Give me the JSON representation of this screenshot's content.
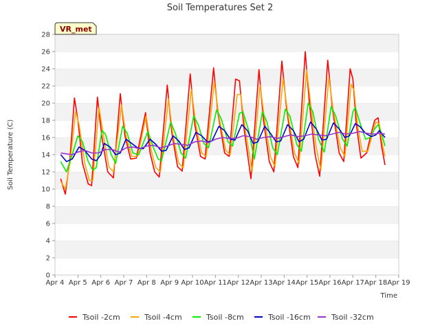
{
  "chart_data": {
    "type": "line",
    "title": "Soil Temperatures Set 2",
    "xlabel": "Time",
    "ylabel": "Soil Temperature (C)",
    "badge": "VR_met",
    "ylim": [
      0,
      28
    ],
    "yticks": [
      0,
      2,
      4,
      6,
      8,
      10,
      12,
      14,
      16,
      18,
      20,
      22,
      24,
      26,
      28
    ],
    "xlim": [
      4,
      19
    ],
    "xticks": [
      {
        "v": 4,
        "label": "Apr 4"
      },
      {
        "v": 5,
        "label": "Apr 5"
      },
      {
        "v": 6,
        "label": "Apr 6"
      },
      {
        "v": 7,
        "label": "Apr 7"
      },
      {
        "v": 8,
        "label": "Apr 8"
      },
      {
        "v": 9,
        "label": "Apr 9"
      },
      {
        "v": 10,
        "label": "Apr 10"
      },
      {
        "v": 11,
        "label": "Apr 11"
      },
      {
        "v": 12,
        "label": "Apr 12"
      },
      {
        "v": 13,
        "label": "Apr 13"
      },
      {
        "v": 14,
        "label": "Apr 14"
      },
      {
        "v": 15,
        "label": "Apr 15"
      },
      {
        "v": 16,
        "label": "Apr 16"
      },
      {
        "v": 17,
        "label": "Apr 17"
      },
      {
        "v": 18,
        "label": "Apr 18"
      },
      {
        "v": 19,
        "label": "Apr 19"
      }
    ],
    "grid": "horizontal bands",
    "legend_position": "bottom",
    "series": [
      {
        "name": "Tsoil -2cm",
        "color": "#ff0000",
        "points": [
          [
            4.25,
            11.2
          ],
          [
            4.45,
            9.4
          ],
          [
            4.65,
            13.5
          ],
          [
            4.85,
            20.6
          ],
          [
            5.0,
            18.0
          ],
          [
            5.2,
            13.0
          ],
          [
            5.45,
            10.6
          ],
          [
            5.6,
            10.4
          ],
          [
            5.85,
            20.7
          ],
          [
            6.05,
            16.0
          ],
          [
            6.3,
            12.0
          ],
          [
            6.55,
            11.3
          ],
          [
            6.85,
            21.1
          ],
          [
            7.05,
            16.2
          ],
          [
            7.3,
            13.5
          ],
          [
            7.55,
            13.6
          ],
          [
            7.95,
            18.9
          ],
          [
            8.15,
            14.2
          ],
          [
            8.35,
            12.0
          ],
          [
            8.55,
            11.4
          ],
          [
            8.9,
            22.1
          ],
          [
            9.1,
            16.5
          ],
          [
            9.35,
            12.6
          ],
          [
            9.55,
            12.1
          ],
          [
            9.9,
            23.4
          ],
          [
            10.1,
            17.5
          ],
          [
            10.35,
            13.8
          ],
          [
            10.55,
            13.5
          ],
          [
            10.92,
            24.1
          ],
          [
            11.1,
            19.0
          ],
          [
            11.4,
            14.2
          ],
          [
            11.6,
            13.8
          ],
          [
            11.88,
            22.8
          ],
          [
            12.05,
            22.6
          ],
          [
            12.25,
            17.0
          ],
          [
            12.55,
            11.2
          ],
          [
            12.9,
            23.9
          ],
          [
            13.1,
            18.0
          ],
          [
            13.35,
            13.2
          ],
          [
            13.55,
            12.0
          ],
          [
            13.9,
            24.9
          ],
          [
            14.1,
            19.5
          ],
          [
            14.4,
            13.8
          ],
          [
            14.6,
            12.5
          ],
          [
            14.92,
            26.0
          ],
          [
            15.1,
            20.0
          ],
          [
            15.35,
            14.0
          ],
          [
            15.55,
            11.5
          ],
          [
            15.9,
            25.0
          ],
          [
            16.1,
            19.5
          ],
          [
            16.4,
            14.2
          ],
          [
            16.6,
            13.2
          ],
          [
            16.88,
            24.0
          ],
          [
            17.0,
            22.8
          ],
          [
            17.15,
            17.5
          ],
          [
            17.35,
            13.6
          ],
          [
            17.6,
            14.2
          ],
          [
            17.8,
            16.5
          ],
          [
            17.95,
            18.0
          ],
          [
            18.1,
            18.3
          ],
          [
            18.25,
            15.0
          ],
          [
            18.4,
            12.8
          ]
        ]
      },
      {
        "name": "Tsoil -4cm",
        "color": "#ffa500",
        "points": [
          [
            4.25,
            10.9
          ],
          [
            4.45,
            10.0
          ],
          [
            4.65,
            13.0
          ],
          [
            4.9,
            19.0
          ],
          [
            5.05,
            17.5
          ],
          [
            5.3,
            13.0
          ],
          [
            5.5,
            11.0
          ],
          [
            5.65,
            11.0
          ],
          [
            5.92,
            19.5
          ],
          [
            6.1,
            16.5
          ],
          [
            6.35,
            12.6
          ],
          [
            6.55,
            12.0
          ],
          [
            6.9,
            19.8
          ],
          [
            7.1,
            16.2
          ],
          [
            7.35,
            13.8
          ],
          [
            7.6,
            13.8
          ],
          [
            7.98,
            18.5
          ],
          [
            8.2,
            14.5
          ],
          [
            8.4,
            12.5
          ],
          [
            8.6,
            12.0
          ],
          [
            8.95,
            20.5
          ],
          [
            9.15,
            16.2
          ],
          [
            9.4,
            13.0
          ],
          [
            9.6,
            12.5
          ],
          [
            9.95,
            21.6
          ],
          [
            10.15,
            17.5
          ],
          [
            10.4,
            14.2
          ],
          [
            10.6,
            13.8
          ],
          [
            10.95,
            22.5
          ],
          [
            11.15,
            18.5
          ],
          [
            11.45,
            14.5
          ],
          [
            11.65,
            14.0
          ],
          [
            11.95,
            21.0
          ],
          [
            12.1,
            21.0
          ],
          [
            12.3,
            17.0
          ],
          [
            12.6,
            12.0
          ],
          [
            12.95,
            22.1
          ],
          [
            13.15,
            18.0
          ],
          [
            13.4,
            13.8
          ],
          [
            13.6,
            12.6
          ],
          [
            13.95,
            22.9
          ],
          [
            14.15,
            19.0
          ],
          [
            14.45,
            14.2
          ],
          [
            14.65,
            13.0
          ],
          [
            14.98,
            23.9
          ],
          [
            15.15,
            20.0
          ],
          [
            15.4,
            14.8
          ],
          [
            15.6,
            12.2
          ],
          [
            15.95,
            23.0
          ],
          [
            16.15,
            19.0
          ],
          [
            16.45,
            14.8
          ],
          [
            16.65,
            13.8
          ],
          [
            16.92,
            22.2
          ],
          [
            17.05,
            21.5
          ],
          [
            17.2,
            17.5
          ],
          [
            17.4,
            14.4
          ],
          [
            17.65,
            14.4
          ],
          [
            17.85,
            16.4
          ],
          [
            18.0,
            17.8
          ],
          [
            18.15,
            17.6
          ],
          [
            18.3,
            15.0
          ],
          [
            18.4,
            13.8
          ]
        ]
      },
      {
        "name": "Tsoil -8cm",
        "color": "#00ee00",
        "points": [
          [
            4.25,
            13.2
          ],
          [
            4.5,
            12.0
          ],
          [
            4.75,
            14.0
          ],
          [
            5.0,
            16.2
          ],
          [
            5.2,
            15.5
          ],
          [
            5.45,
            13.2
          ],
          [
            5.65,
            12.2
          ],
          [
            5.8,
            12.5
          ],
          [
            6.05,
            16.8
          ],
          [
            6.2,
            16.4
          ],
          [
            6.45,
            14.0
          ],
          [
            6.65,
            13.0
          ],
          [
            6.95,
            17.3
          ],
          [
            7.15,
            16.5
          ],
          [
            7.4,
            14.2
          ],
          [
            7.65,
            14.0
          ],
          [
            8.05,
            16.7
          ],
          [
            8.3,
            14.8
          ],
          [
            8.5,
            13.5
          ],
          [
            8.65,
            13.3
          ],
          [
            9.05,
            17.8
          ],
          [
            9.25,
            16.5
          ],
          [
            9.5,
            14.2
          ],
          [
            9.7,
            13.6
          ],
          [
            10.05,
            18.5
          ],
          [
            10.25,
            17.5
          ],
          [
            10.5,
            15.3
          ],
          [
            10.7,
            14.8
          ],
          [
            11.05,
            19.2
          ],
          [
            11.25,
            18.2
          ],
          [
            11.55,
            15.5
          ],
          [
            11.75,
            15.0
          ],
          [
            12.05,
            18.8
          ],
          [
            12.2,
            19.0
          ],
          [
            12.45,
            16.8
          ],
          [
            12.7,
            13.5
          ],
          [
            13.05,
            19.0
          ],
          [
            13.25,
            17.8
          ],
          [
            13.5,
            14.8
          ],
          [
            13.7,
            14.0
          ],
          [
            14.05,
            19.3
          ],
          [
            14.25,
            18.5
          ],
          [
            14.55,
            15.2
          ],
          [
            14.75,
            14.4
          ],
          [
            15.05,
            20.0
          ],
          [
            15.25,
            19.0
          ],
          [
            15.5,
            15.8
          ],
          [
            15.75,
            14.3
          ],
          [
            16.05,
            19.6
          ],
          [
            16.25,
            18.5
          ],
          [
            16.55,
            15.8
          ],
          [
            16.75,
            15.0
          ],
          [
            17.0,
            19.0
          ],
          [
            17.1,
            19.5
          ],
          [
            17.3,
            17.8
          ],
          [
            17.55,
            15.8
          ],
          [
            17.75,
            16.0
          ],
          [
            17.95,
            17.0
          ],
          [
            18.1,
            17.5
          ],
          [
            18.25,
            16.5
          ],
          [
            18.4,
            15.0
          ]
        ]
      },
      {
        "name": "Tsoil -16cm",
        "color": "#0000cc",
        "points": [
          [
            4.25,
            14.0
          ],
          [
            4.5,
            13.2
          ],
          [
            4.75,
            13.5
          ],
          [
            5.05,
            14.9
          ],
          [
            5.3,
            14.5
          ],
          [
            5.6,
            13.5
          ],
          [
            5.8,
            13.3
          ],
          [
            6.0,
            14.0
          ],
          [
            6.15,
            15.3
          ],
          [
            6.4,
            14.9
          ],
          [
            6.65,
            14.0
          ],
          [
            6.85,
            14.2
          ],
          [
            7.1,
            15.8
          ],
          [
            7.35,
            15.3
          ],
          [
            7.6,
            14.8
          ],
          [
            7.85,
            14.7
          ],
          [
            8.15,
            15.8
          ],
          [
            8.4,
            15.2
          ],
          [
            8.65,
            14.4
          ],
          [
            8.85,
            14.5
          ],
          [
            9.15,
            16.2
          ],
          [
            9.4,
            15.6
          ],
          [
            9.65,
            14.6
          ],
          [
            9.85,
            14.8
          ],
          [
            10.15,
            16.6
          ],
          [
            10.4,
            16.2
          ],
          [
            10.65,
            15.5
          ],
          [
            10.85,
            15.6
          ],
          [
            11.15,
            17.3
          ],
          [
            11.4,
            16.8
          ],
          [
            11.65,
            15.8
          ],
          [
            11.85,
            15.7
          ],
          [
            12.15,
            17.5
          ],
          [
            12.4,
            16.8
          ],
          [
            12.65,
            15.3
          ],
          [
            12.85,
            15.5
          ],
          [
            13.15,
            17.3
          ],
          [
            13.4,
            16.5
          ],
          [
            13.65,
            15.5
          ],
          [
            13.85,
            15.6
          ],
          [
            14.15,
            17.5
          ],
          [
            14.4,
            16.8
          ],
          [
            14.65,
            15.5
          ],
          [
            14.85,
            15.8
          ],
          [
            15.15,
            17.8
          ],
          [
            15.4,
            17.0
          ],
          [
            15.65,
            15.7
          ],
          [
            15.85,
            15.8
          ],
          [
            16.15,
            17.7
          ],
          [
            16.4,
            17.0
          ],
          [
            16.65,
            16.0
          ],
          [
            16.85,
            16.2
          ],
          [
            17.1,
            17.6
          ],
          [
            17.3,
            17.3
          ],
          [
            17.55,
            16.5
          ],
          [
            17.8,
            16.1
          ],
          [
            18.0,
            16.3
          ],
          [
            18.15,
            16.8
          ],
          [
            18.4,
            16.0
          ]
        ]
      },
      {
        "name": "Tsoil -32cm",
        "color": "#9933cc",
        "points": [
          [
            4.25,
            14.2
          ],
          [
            4.5,
            14.1
          ],
          [
            4.75,
            14.0
          ],
          [
            5.0,
            14.3
          ],
          [
            5.3,
            14.5
          ],
          [
            5.6,
            14.2
          ],
          [
            5.9,
            14.2
          ],
          [
            6.2,
            14.6
          ],
          [
            6.5,
            14.6
          ],
          [
            6.8,
            14.3
          ],
          [
            7.1,
            14.8
          ],
          [
            7.4,
            14.9
          ],
          [
            7.7,
            14.7
          ],
          [
            8.0,
            15.0
          ],
          [
            8.3,
            15.1
          ],
          [
            8.6,
            14.8
          ],
          [
            8.9,
            15.0
          ],
          [
            9.2,
            15.3
          ],
          [
            9.5,
            15.2
          ],
          [
            9.8,
            15.1
          ],
          [
            10.1,
            15.5
          ],
          [
            10.4,
            15.6
          ],
          [
            10.7,
            15.4
          ],
          [
            11.0,
            15.8
          ],
          [
            11.3,
            16.0
          ],
          [
            11.6,
            15.9
          ],
          [
            11.9,
            15.9
          ],
          [
            12.2,
            16.2
          ],
          [
            12.5,
            16.1
          ],
          [
            12.8,
            15.8
          ],
          [
            13.1,
            16.0
          ],
          [
            13.4,
            16.1
          ],
          [
            13.7,
            15.9
          ],
          [
            14.0,
            16.1
          ],
          [
            14.3,
            16.3
          ],
          [
            14.6,
            16.1
          ],
          [
            14.9,
            16.2
          ],
          [
            15.2,
            16.4
          ],
          [
            15.5,
            16.3
          ],
          [
            15.8,
            16.2
          ],
          [
            16.1,
            16.4
          ],
          [
            16.4,
            16.6
          ],
          [
            16.7,
            16.4
          ],
          [
            17.0,
            16.5
          ],
          [
            17.3,
            16.7
          ],
          [
            17.6,
            16.5
          ],
          [
            17.9,
            16.4
          ],
          [
            18.2,
            16.5
          ],
          [
            18.4,
            16.4
          ]
        ]
      }
    ]
  }
}
